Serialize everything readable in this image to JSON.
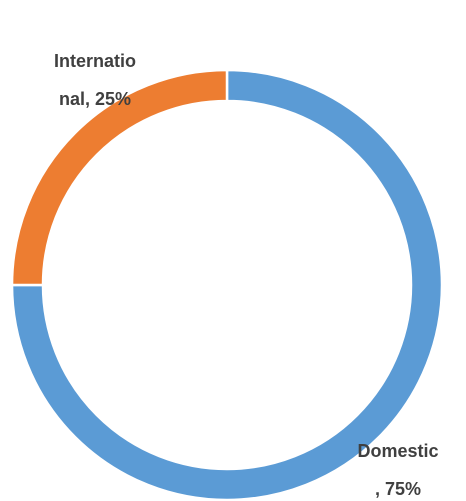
{
  "chart_data": {
    "type": "donut",
    "categories": [
      "Domestic",
      "International"
    ],
    "values": [
      75,
      25
    ],
    "value_labels": [
      "Domestic, 75%",
      "International, 25%"
    ],
    "colors": [
      "#5b9bd5",
      "#ed7d31"
    ]
  }
}
